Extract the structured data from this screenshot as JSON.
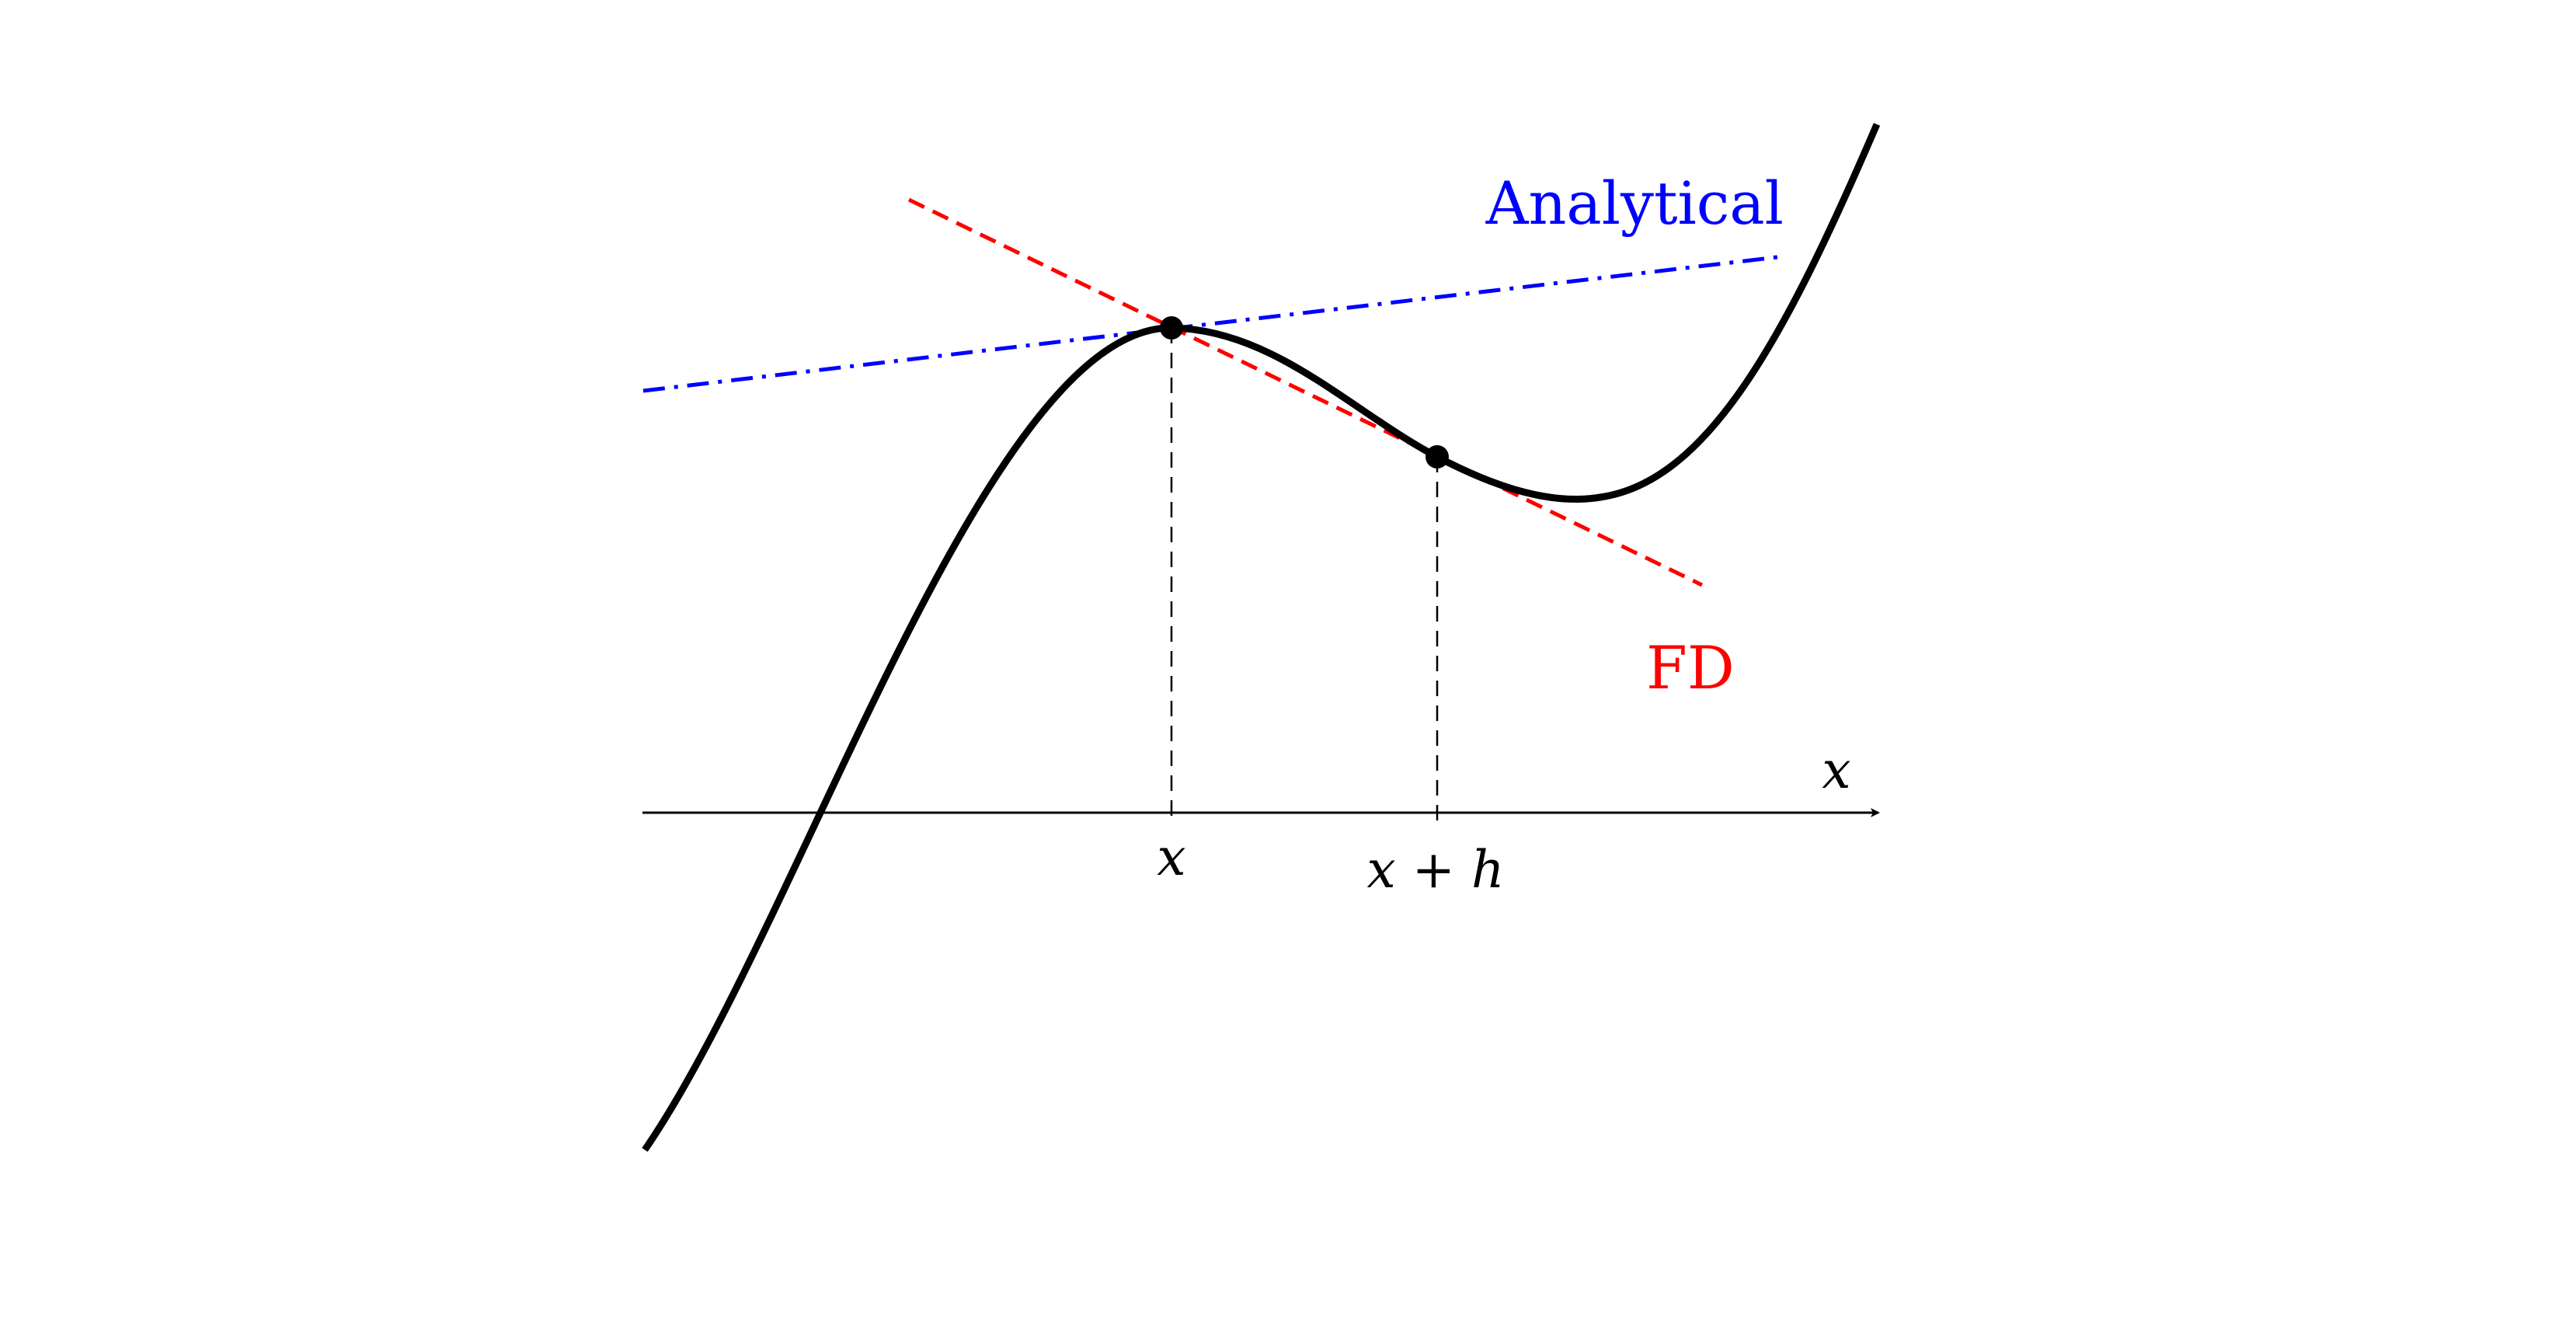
{
  "diagram": {
    "labels": {
      "analytical": "Analytical",
      "fd": "FD",
      "axis_x": "x",
      "tick_x": "x",
      "tick_x_plus_h": "x + h"
    },
    "colors": {
      "curve": "#000000",
      "analytical": "#0000ff",
      "fd": "#ff0000",
      "axis": "#000000",
      "guides": "#000000"
    }
  }
}
